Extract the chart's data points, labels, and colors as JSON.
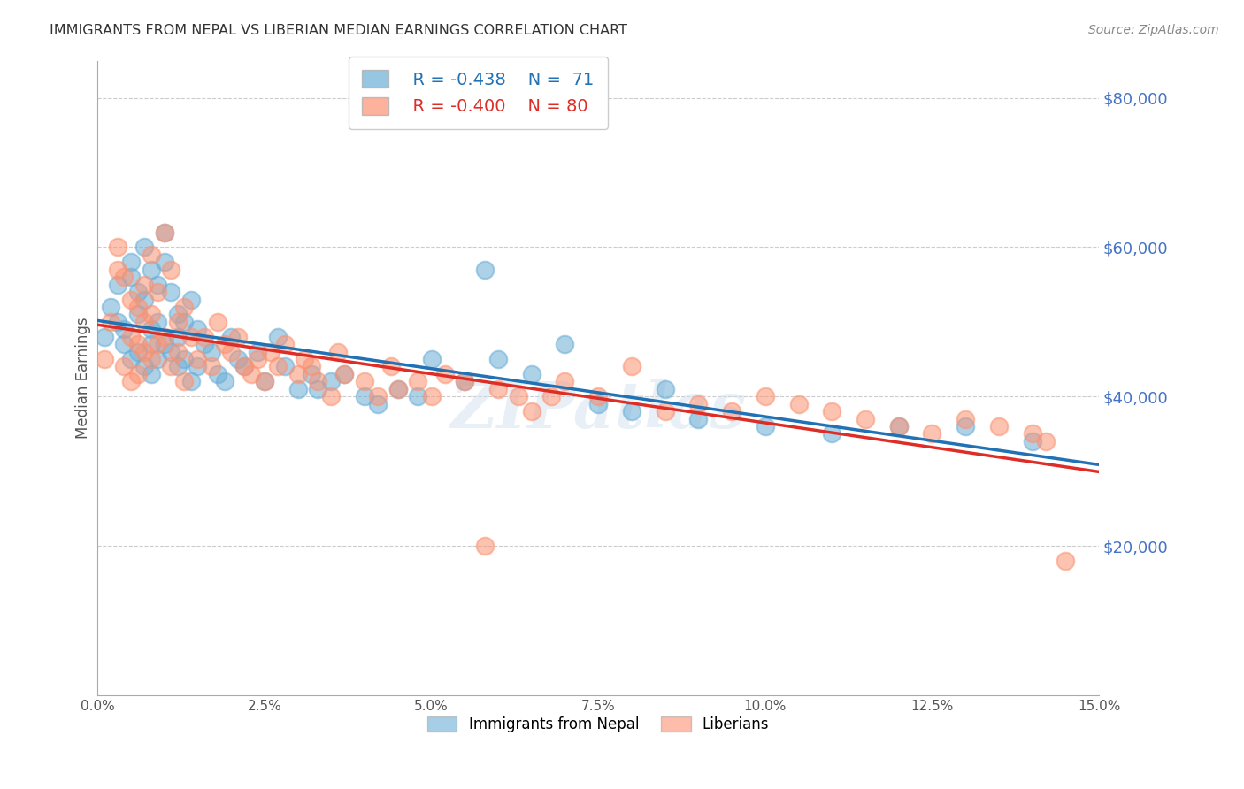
{
  "title": "IMMIGRANTS FROM NEPAL VS LIBERIAN MEDIAN EARNINGS CORRELATION CHART",
  "source": "Source: ZipAtlas.com",
  "ylabel": "Median Earnings",
  "right_ytick_labels": [
    "$20,000",
    "$40,000",
    "$60,000",
    "$80,000"
  ],
  "right_ytick_values": [
    20000,
    40000,
    60000,
    80000
  ],
  "legend_blue_R": "R = -0.438",
  "legend_blue_N": "N =  71",
  "legend_pink_R": "R = -0.400",
  "legend_pink_N": "N = 80",
  "blue_color": "#6baed6",
  "pink_color": "#fc9272",
  "blue_line_color": "#2171b5",
  "pink_line_color": "#de2d26",
  "right_label_color": "#4472C4",
  "watermark": "ZIPatlas",
  "xmin": 0.0,
  "xmax": 0.15,
  "ymin": 0,
  "ymax": 85000,
  "nepal_x": [
    0.001,
    0.002,
    0.003,
    0.003,
    0.004,
    0.004,
    0.005,
    0.005,
    0.005,
    0.006,
    0.006,
    0.006,
    0.007,
    0.007,
    0.007,
    0.008,
    0.008,
    0.008,
    0.008,
    0.009,
    0.009,
    0.009,
    0.01,
    0.01,
    0.01,
    0.011,
    0.011,
    0.012,
    0.012,
    0.012,
    0.013,
    0.013,
    0.014,
    0.014,
    0.015,
    0.015,
    0.016,
    0.017,
    0.018,
    0.019,
    0.02,
    0.021,
    0.022,
    0.024,
    0.025,
    0.027,
    0.028,
    0.03,
    0.032,
    0.033,
    0.035,
    0.037,
    0.04,
    0.042,
    0.045,
    0.048,
    0.05,
    0.055,
    0.058,
    0.06,
    0.065,
    0.07,
    0.075,
    0.08,
    0.085,
    0.09,
    0.1,
    0.11,
    0.12,
    0.13,
    0.14
  ],
  "nepal_y": [
    48000,
    52000,
    55000,
    50000,
    49000,
    47000,
    58000,
    56000,
    45000,
    54000,
    51000,
    46000,
    60000,
    53000,
    44000,
    57000,
    49000,
    47000,
    43000,
    55000,
    50000,
    45000,
    62000,
    58000,
    47000,
    54000,
    46000,
    51000,
    48000,
    44000,
    50000,
    45000,
    53000,
    42000,
    49000,
    44000,
    47000,
    46000,
    43000,
    42000,
    48000,
    45000,
    44000,
    46000,
    42000,
    48000,
    44000,
    41000,
    43000,
    41000,
    42000,
    43000,
    40000,
    39000,
    41000,
    40000,
    45000,
    42000,
    57000,
    45000,
    43000,
    47000,
    39000,
    38000,
    41000,
    37000,
    36000,
    35000,
    36000,
    36000,
    34000
  ],
  "liberia_x": [
    0.001,
    0.002,
    0.003,
    0.003,
    0.004,
    0.004,
    0.005,
    0.005,
    0.005,
    0.006,
    0.006,
    0.006,
    0.007,
    0.007,
    0.007,
    0.008,
    0.008,
    0.008,
    0.009,
    0.009,
    0.01,
    0.01,
    0.011,
    0.011,
    0.012,
    0.012,
    0.013,
    0.013,
    0.014,
    0.015,
    0.016,
    0.017,
    0.018,
    0.019,
    0.02,
    0.021,
    0.022,
    0.023,
    0.024,
    0.025,
    0.026,
    0.027,
    0.028,
    0.03,
    0.031,
    0.032,
    0.033,
    0.035,
    0.036,
    0.037,
    0.04,
    0.042,
    0.044,
    0.045,
    0.048,
    0.05,
    0.052,
    0.055,
    0.058,
    0.06,
    0.063,
    0.065,
    0.068,
    0.07,
    0.075,
    0.08,
    0.085,
    0.09,
    0.095,
    0.1,
    0.105,
    0.11,
    0.115,
    0.12,
    0.125,
    0.13,
    0.135,
    0.14,
    0.142,
    0.145
  ],
  "liberia_y": [
    45000,
    50000,
    60000,
    57000,
    56000,
    44000,
    53000,
    48000,
    42000,
    52000,
    47000,
    43000,
    55000,
    50000,
    46000,
    59000,
    51000,
    45000,
    54000,
    47000,
    62000,
    48000,
    57000,
    44000,
    50000,
    46000,
    52000,
    42000,
    48000,
    45000,
    48000,
    44000,
    50000,
    47000,
    46000,
    48000,
    44000,
    43000,
    45000,
    42000,
    46000,
    44000,
    47000,
    43000,
    45000,
    44000,
    42000,
    40000,
    46000,
    43000,
    42000,
    40000,
    44000,
    41000,
    42000,
    40000,
    43000,
    42000,
    20000,
    41000,
    40000,
    38000,
    40000,
    42000,
    40000,
    44000,
    38000,
    39000,
    38000,
    40000,
    39000,
    38000,
    37000,
    36000,
    35000,
    37000,
    36000,
    35000,
    34000,
    18000
  ]
}
